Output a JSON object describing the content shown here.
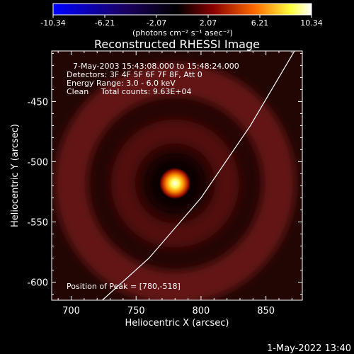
{
  "colorbar": {
    "ticks": [
      "-10.34",
      "-6.21",
      "-2.07",
      "2.07",
      "6.21",
      "10.34"
    ],
    "unit_label": "(photons cm⁻² s⁻¹ asec⁻²)",
    "colors": [
      "#0000ff",
      "#000000",
      "#8a0000",
      "#ff6a00",
      "#ffff80",
      "#ffffff"
    ]
  },
  "chart_data": {
    "type": "heatmap",
    "title": "Reconstructed RHESSI Image",
    "xlabel": "Heliocentric X (arcsec)",
    "ylabel": "Heliocentric Y (arcsec)",
    "xlim": [
      685,
      878
    ],
    "ylim": [
      -615,
      -408
    ],
    "x_ticks": [
      "700",
      "750",
      "800",
      "850"
    ],
    "y_ticks": [
      "-450",
      "-500",
      "-550",
      "-600"
    ],
    "x_tick_values": [
      700,
      750,
      800,
      850
    ],
    "y_tick_values": [
      -450,
      -500,
      -550,
      -600
    ],
    "peak": [
      780,
      -518
    ],
    "ring_radii_arcsec": [
      40,
      80
    ],
    "limb_points": [
      [
        724,
        -615
      ],
      [
        760,
        -580
      ],
      [
        800,
        -530
      ],
      [
        838,
        -470
      ],
      [
        872,
        -408
      ]
    ],
    "annotations": [
      "7-May-2003 15:43:08.000 to 15:48:24.000",
      "Detectors: 3F 4F 5F 6F 7F 8F, Att 0",
      "Energy Range: 3.0 - 6.0 keV",
      "Clean     Total counts: 9.63E+04"
    ],
    "peak_label": "Position of Peak = [780,-518]"
  },
  "footer": {
    "date": "1-May-2022 13:40"
  }
}
